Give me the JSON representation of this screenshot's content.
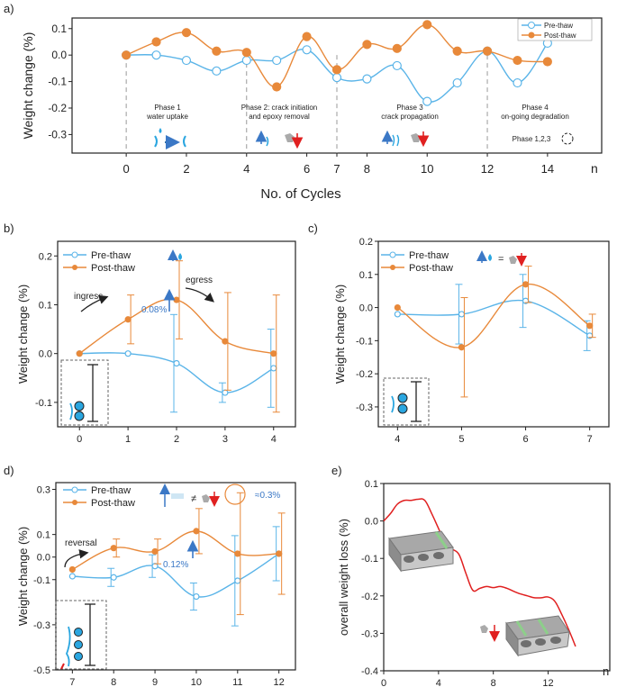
{
  "colors": {
    "pre": "#5ab4e8",
    "post": "#e8893a",
    "loss": "#e02020",
    "axis": "#222222",
    "phase_line": "#999999",
    "arrow_blue": "#3b78c6",
    "arrow_red": "#e02020"
  },
  "chart_data": [
    {
      "id": "a",
      "panel_label": "a)",
      "type": "line",
      "ylabel": "Weight change (%)",
      "xlabel": "No. of Cycles",
      "x_unit": "n",
      "ylim": [
        -0.37,
        0.14
      ],
      "xlim": [
        -1.8,
        15.8
      ],
      "yticks": [
        0.1,
        0.0,
        -0.1,
        -0.2,
        -0.3
      ],
      "ytick_labels": [
        "0.1",
        "0.0",
        "-0.1",
        "-0.2",
        "-0.3"
      ],
      "xticks": [
        0,
        2,
        4,
        6,
        7,
        8,
        10,
        12,
        14
      ],
      "phase_lines": [
        0,
        4,
        7,
        12
      ],
      "series": [
        {
          "name": "Pre-thaw",
          "x": [
            0,
            1,
            2,
            3,
            4,
            5,
            6,
            7,
            8,
            9,
            10,
            11,
            12,
            13,
            14
          ],
          "values": [
            0,
            0,
            -0.02,
            -0.06,
            -0.02,
            -0.02,
            0.02,
            -0.085,
            -0.09,
            -0.04,
            -0.175,
            -0.105,
            0.015,
            -0.105,
            0.045
          ]
        },
        {
          "name": "Post-thaw",
          "x": [
            0,
            1,
            2,
            3,
            4,
            5,
            6,
            7,
            8,
            9,
            10,
            11,
            12,
            13,
            14
          ],
          "values": [
            0,
            0.05,
            0.085,
            0.015,
            0.01,
            -0.12,
            0.07,
            -0.055,
            0.04,
            0.025,
            0.115,
            0.015,
            0.015,
            -0.02,
            -0.025
          ]
        }
      ],
      "phases": [
        {
          "lines": [
            "Phase 1",
            "water uptake"
          ],
          "x": 2
        },
        {
          "lines": [
            "Phase 2: crack initiation",
            "and epoxy removal"
          ],
          "x": 5.5
        },
        {
          "lines": [
            "Phase 3",
            "crack propagation"
          ],
          "x": 9.5
        },
        {
          "lines": [
            "Phase 4",
            "on-going degradation"
          ],
          "x": 13
        },
        {
          "lines": [
            "Phase 1,2,3"
          ],
          "x": 13
        }
      ]
    },
    {
      "id": "b",
      "panel_label": "b)",
      "type": "line",
      "ylabel": "Weight change (%)",
      "xlim": [
        -0.45,
        4.45
      ],
      "ylim": [
        -0.15,
        0.23
      ],
      "yticks": [
        0.2,
        0.1,
        0.0,
        -0.1
      ],
      "ytick_labels": [
        "0.2",
        "0.1",
        "0.0",
        "-0.1"
      ],
      "xticks": [
        0,
        1,
        2,
        3,
        4
      ],
      "series": [
        {
          "name": "Pre-thaw",
          "x": [
            0,
            1,
            2,
            3,
            4
          ],
          "values": [
            0,
            0,
            -0.02,
            -0.08,
            -0.03
          ],
          "err": [
            0,
            0,
            0.1,
            0.02,
            0.08
          ]
        },
        {
          "name": "Post-thaw",
          "x": [
            0,
            1,
            2,
            3,
            4
          ],
          "values": [
            0,
            0.07,
            0.11,
            0.025,
            0
          ],
          "err": [
            0,
            0.05,
            0.08,
            0.1,
            0.12
          ]
        }
      ],
      "annotations": [
        "ingress",
        "egress",
        "0.08%"
      ]
    },
    {
      "id": "c",
      "panel_label": "c)",
      "type": "line",
      "ylabel": "Weight change (%)",
      "xlim": [
        3.7,
        7.3
      ],
      "ylim": [
        -0.36,
        0.2
      ],
      "yticks": [
        0.2,
        0.1,
        0.0,
        -0.1,
        -0.2,
        -0.3
      ],
      "ytick_labels": [
        "0.2",
        "0.1",
        "0.0",
        "-0.1",
        "-0.2",
        "-0.3"
      ],
      "xticks": [
        4,
        5,
        6,
        7
      ],
      "series": [
        {
          "name": "Pre-thaw",
          "x": [
            4,
            5,
            6,
            7
          ],
          "values": [
            -0.02,
            -0.02,
            0.02,
            -0.085
          ],
          "err": [
            0,
            0.09,
            0.08,
            0.045
          ]
        },
        {
          "name": "Post-thaw",
          "x": [
            4,
            5,
            6,
            7
          ],
          "values": [
            0,
            -0.12,
            0.07,
            -0.055
          ],
          "err": [
            0,
            0.15,
            0.055,
            0.035
          ]
        }
      ]
    },
    {
      "id": "d",
      "panel_label": "d)",
      "type": "line",
      "ylabel": "Weight change (%)",
      "xlim": [
        6.6,
        12.4
      ],
      "ylim": [
        -0.5,
        0.33
      ],
      "yticks": [
        0.3,
        0.1,
        0.0,
        -0.1,
        -0.3,
        -0.5
      ],
      "ytick_labels": [
        "0.3",
        "0.1",
        "0.0",
        "-0.1",
        "-0.3",
        "-0.5"
      ],
      "xticks": [
        7,
        8,
        9,
        10,
        11,
        12
      ],
      "series": [
        {
          "name": "Pre-thaw",
          "x": [
            7,
            8,
            9,
            10,
            11,
            12
          ],
          "values": [
            -0.085,
            -0.09,
            -0.04,
            -0.175,
            -0.105,
            0.015
          ],
          "err": [
            0,
            0.04,
            0.05,
            0.06,
            0.2,
            0.12
          ]
        },
        {
          "name": "Post-thaw",
          "x": [
            7,
            8,
            9,
            10,
            11,
            12
          ],
          "values": [
            -0.055,
            0.04,
            0.025,
            0.115,
            0.015,
            0.015
          ],
          "err": [
            0,
            0.04,
            0.055,
            0.1,
            0.27,
            0.18
          ]
        }
      ],
      "annotations": [
        "reversal",
        "0.12%",
        "≈0.3%",
        "≠"
      ]
    },
    {
      "id": "e",
      "panel_label": "e)",
      "type": "line",
      "ylabel": "overall weight loss (%)",
      "x_unit": "n",
      "xlim": [
        0,
        16.5
      ],
      "ylim": [
        -0.4,
        0.1
      ],
      "yticks": [
        0.1,
        0.0,
        -0.1,
        -0.2,
        -0.3,
        -0.4
      ],
      "ytick_labels": [
        "0.1",
        "0.0",
        "-0.1",
        "-0.2",
        "-0.3",
        "-0.4"
      ],
      "xticks": [
        0,
        4,
        8,
        12
      ],
      "series": [
        {
          "name": "overall",
          "x": [
            0,
            0.5,
            1,
            1.5,
            2,
            2.5,
            3,
            3.5,
            4,
            4.5,
            5,
            5.5,
            6,
            6.5,
            7,
            7.5,
            8,
            8.5,
            9,
            9.5,
            10,
            10.5,
            11,
            11.5,
            12,
            12.5,
            13,
            13.5,
            14
          ],
          "values": [
            0,
            0.02,
            0.045,
            0.055,
            0.055,
            0.058,
            0.055,
            0.02,
            -0.02,
            -0.06,
            -0.075,
            -0.09,
            -0.14,
            -0.185,
            -0.18,
            -0.175,
            -0.178,
            -0.175,
            -0.18,
            -0.188,
            -0.195,
            -0.2,
            -0.205,
            -0.205,
            -0.203,
            -0.215,
            -0.25,
            -0.29,
            -0.335
          ]
        }
      ]
    }
  ],
  "legend": {
    "pre": "Pre-thaw",
    "post": "Post-thaw"
  }
}
